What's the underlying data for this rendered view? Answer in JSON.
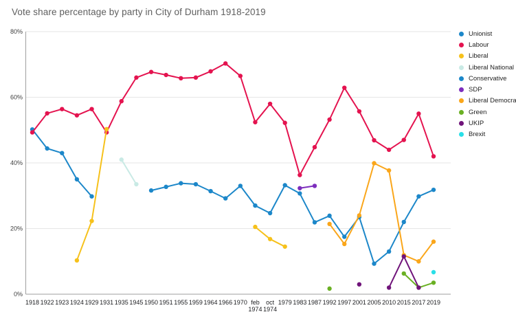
{
  "title": "Vote share percentage by party in City of Durham 1918-2019",
  "axes": {
    "y_ticks": [
      {
        "value": 0,
        "label": "0%"
      },
      {
        "value": 20,
        "label": "20%"
      },
      {
        "value": 40,
        "label": "40%"
      },
      {
        "value": 60,
        "label": "60%"
      },
      {
        "value": 80,
        "label": "80%"
      }
    ]
  },
  "chart_data": {
    "type": "line",
    "title": "Vote share percentage by party in City of Durham 1918-2019",
    "xlabel": "",
    "ylabel": "",
    "ylim": [
      0,
      80
    ],
    "grid": true,
    "legend_position": "right",
    "categories": [
      "1918",
      "1922",
      "1923",
      "1924",
      "1929",
      "1931",
      "1935",
      "1945",
      "1950",
      "1951",
      "1955",
      "1959",
      "1964",
      "1966",
      "1970",
      "feb\n1974",
      "oct\n1974",
      "1979",
      "1983",
      "1987",
      "1992",
      "1997",
      "2001",
      "2005",
      "2010",
      "2015",
      "2017",
      "2019"
    ],
    "series": [
      {
        "name": "Unionist",
        "color": "#1c87c9",
        "values": [
          50.2,
          44.4,
          43,
          35,
          29.8,
          null,
          null,
          null,
          null,
          null,
          null,
          null,
          null,
          null,
          null,
          null,
          null,
          null,
          null,
          null,
          null,
          null,
          null,
          null,
          null,
          null,
          null,
          null
        ]
      },
      {
        "name": "Labour",
        "color": "#e4134f",
        "values": [
          49.3,
          55.1,
          56.4,
          54.5,
          56.4,
          49.3,
          58.8,
          66,
          67.7,
          66.8,
          65.8,
          66,
          67.9,
          70.3,
          66.5,
          52.4,
          58,
          52.2,
          36.3,
          44.8,
          53.2,
          62.9,
          55.7,
          46.9,
          44,
          47,
          55,
          42
        ]
      },
      {
        "name": "Liberal",
        "color": "#f6c11b",
        "values": [
          null,
          null,
          null,
          10.3,
          22.3,
          50.3,
          null,
          null,
          null,
          null,
          null,
          null,
          null,
          null,
          null,
          20.5,
          16.8,
          14.5,
          null,
          null,
          null,
          null,
          null,
          null,
          null,
          null,
          null,
          null
        ]
      },
      {
        "name": "Liberal National",
        "color": "#c9eae5",
        "values": [
          null,
          null,
          null,
          null,
          null,
          null,
          41,
          33.5,
          null,
          null,
          null,
          null,
          null,
          null,
          null,
          null,
          null,
          null,
          null,
          null,
          null,
          null,
          null,
          null,
          null,
          null,
          null,
          null
        ]
      },
      {
        "name": "Conservative",
        "color": "#1c87c9",
        "values": [
          null,
          null,
          null,
          null,
          null,
          null,
          null,
          null,
          31.6,
          32.7,
          33.8,
          33.5,
          31.4,
          29.2,
          33,
          27,
          24.7,
          33.2,
          30.7,
          21.9,
          23.9,
          17.5,
          23.5,
          9.3,
          13,
          22,
          29.8,
          31.8
        ]
      },
      {
        "name": "SDP",
        "color": "#7d2ebd",
        "values": [
          null,
          null,
          null,
          null,
          null,
          null,
          null,
          null,
          null,
          null,
          null,
          null,
          null,
          null,
          null,
          null,
          null,
          null,
          32.3,
          33,
          null,
          null,
          null,
          null,
          null,
          null,
          null,
          null
        ]
      },
      {
        "name": "Liberal Democrats",
        "color": "#faa61a",
        "values": [
          null,
          null,
          null,
          null,
          null,
          null,
          null,
          null,
          null,
          null,
          null,
          null,
          null,
          null,
          null,
          null,
          null,
          null,
          null,
          null,
          21.4,
          15.3,
          24,
          39.9,
          37.7,
          11.9,
          10,
          16
        ]
      },
      {
        "name": "Green",
        "color": "#6ab023",
        "values": [
          null,
          null,
          null,
          null,
          null,
          null,
          null,
          null,
          null,
          null,
          null,
          null,
          null,
          null,
          null,
          null,
          null,
          null,
          null,
          null,
          1.7,
          null,
          null,
          null,
          null,
          6.3,
          2,
          3.5
        ]
      },
      {
        "name": "UKIP",
        "color": "#70147a",
        "values": [
          null,
          null,
          null,
          null,
          null,
          null,
          null,
          null,
          null,
          null,
          null,
          null,
          null,
          null,
          null,
          null,
          null,
          null,
          null,
          null,
          null,
          null,
          3,
          null,
          2,
          11.5,
          2,
          null
        ]
      },
      {
        "name": "Brexit",
        "color": "#29dfe8",
        "values": [
          null,
          null,
          null,
          null,
          null,
          null,
          null,
          null,
          null,
          null,
          null,
          null,
          null,
          null,
          null,
          null,
          null,
          null,
          null,
          null,
          null,
          null,
          null,
          null,
          null,
          null,
          null,
          6.7
        ]
      }
    ]
  },
  "style": {
    "grid_color": "#e6e6e6",
    "axis_color": "#9e9e9e",
    "background": "#ffffff"
  }
}
